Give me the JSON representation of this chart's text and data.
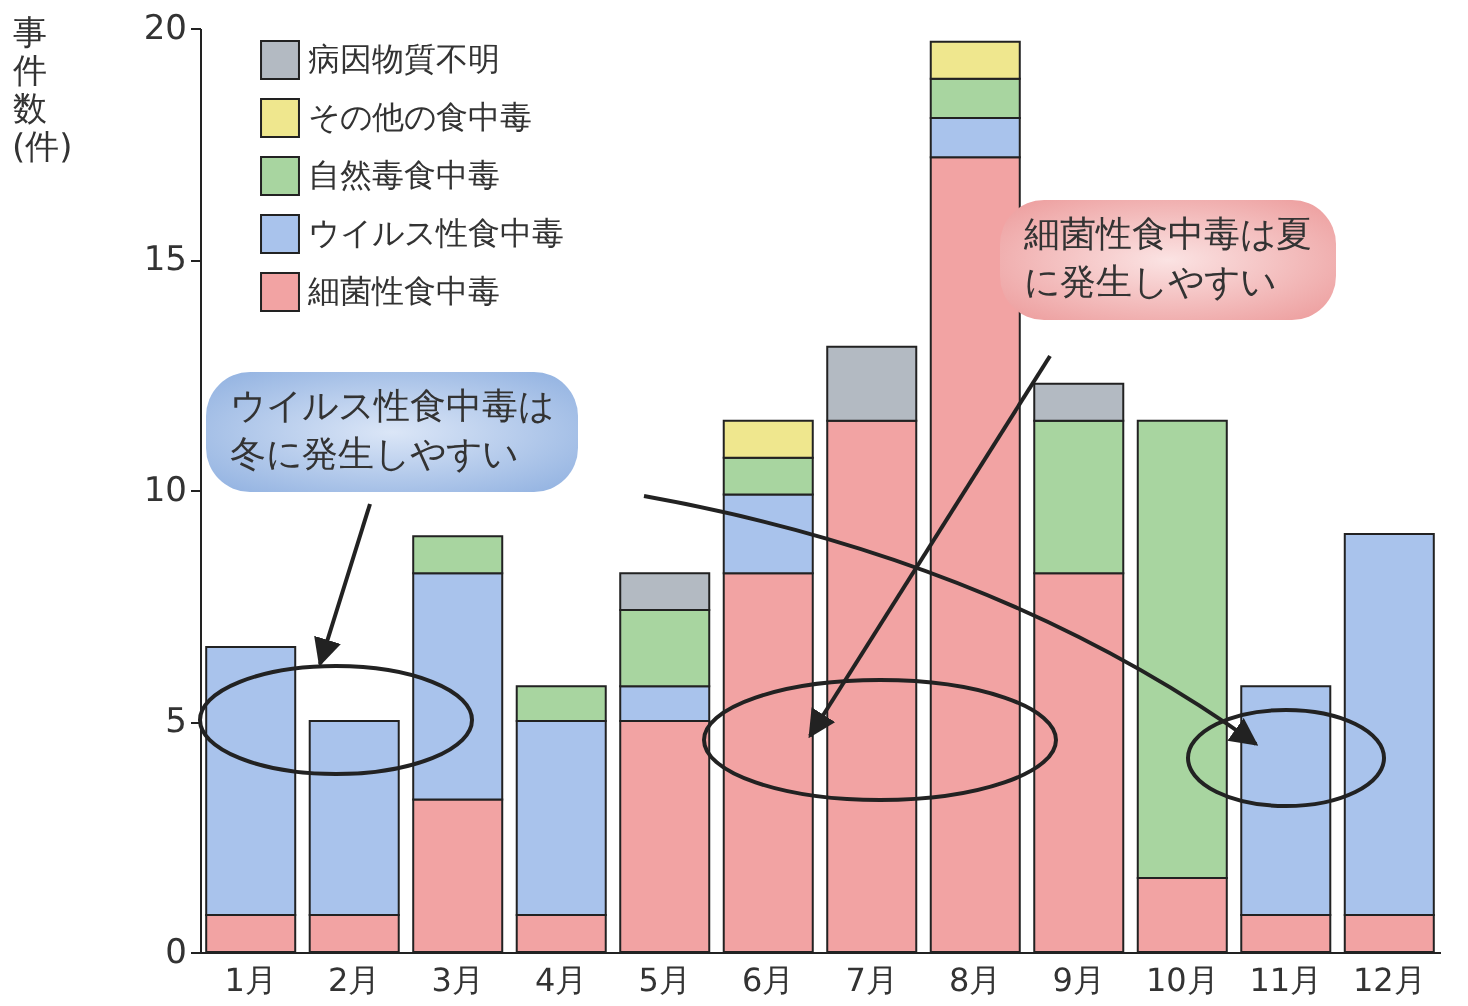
{
  "chart_data": {
    "type": "bar",
    "stacked": true,
    "ylabel": "事件数(件)",
    "categories": [
      "1月",
      "2月",
      "3月",
      "4月",
      "5月",
      "6月",
      "7月",
      "8月",
      "9月",
      "10月",
      "11月",
      "12月"
    ],
    "series": [
      {
        "name": "細菌性食中毒",
        "color": "#f2a3a3",
        "values": [
          0.8,
          0.8,
          3.3,
          0.8,
          5.0,
          8.2,
          11.5,
          17.2,
          8.2,
          1.6,
          0.8,
          0.8
        ]
      },
      {
        "name": "ウイルス性食中毒",
        "color": "#a9c3ec",
        "values": [
          5.8,
          4.2,
          4.9,
          4.2,
          0.75,
          1.7,
          0,
          0.85,
          0,
          0,
          4.95,
          8.25
        ]
      },
      {
        "name": "自然毒食中毒",
        "color": "#a8d5a0",
        "values": [
          0,
          0,
          0.8,
          0.75,
          1.65,
          0.8,
          0,
          0.85,
          3.3,
          9.9,
          0,
          0
        ]
      },
      {
        "name": "その他の食中毒",
        "color": "#efe78e",
        "values": [
          0,
          0,
          0,
          0,
          0,
          0.8,
          0,
          0.8,
          0,
          0,
          0,
          0
        ]
      },
      {
        "name": "病因物質不明",
        "color": "#b3bac2",
        "values": [
          0,
          0,
          0,
          0,
          0.8,
          0,
          1.6,
          0,
          0.8,
          0,
          0,
          0
        ]
      }
    ],
    "ylim": [
      0,
      20
    ],
    "yticks": [
      0,
      5,
      10,
      15,
      20
    ],
    "grid": false,
    "legend": "top left",
    "annotations": [
      "ウイルス性食中毒は冬に発生しやすい",
      "細菌性食中毒は夏に発生しやすい"
    ]
  }
}
